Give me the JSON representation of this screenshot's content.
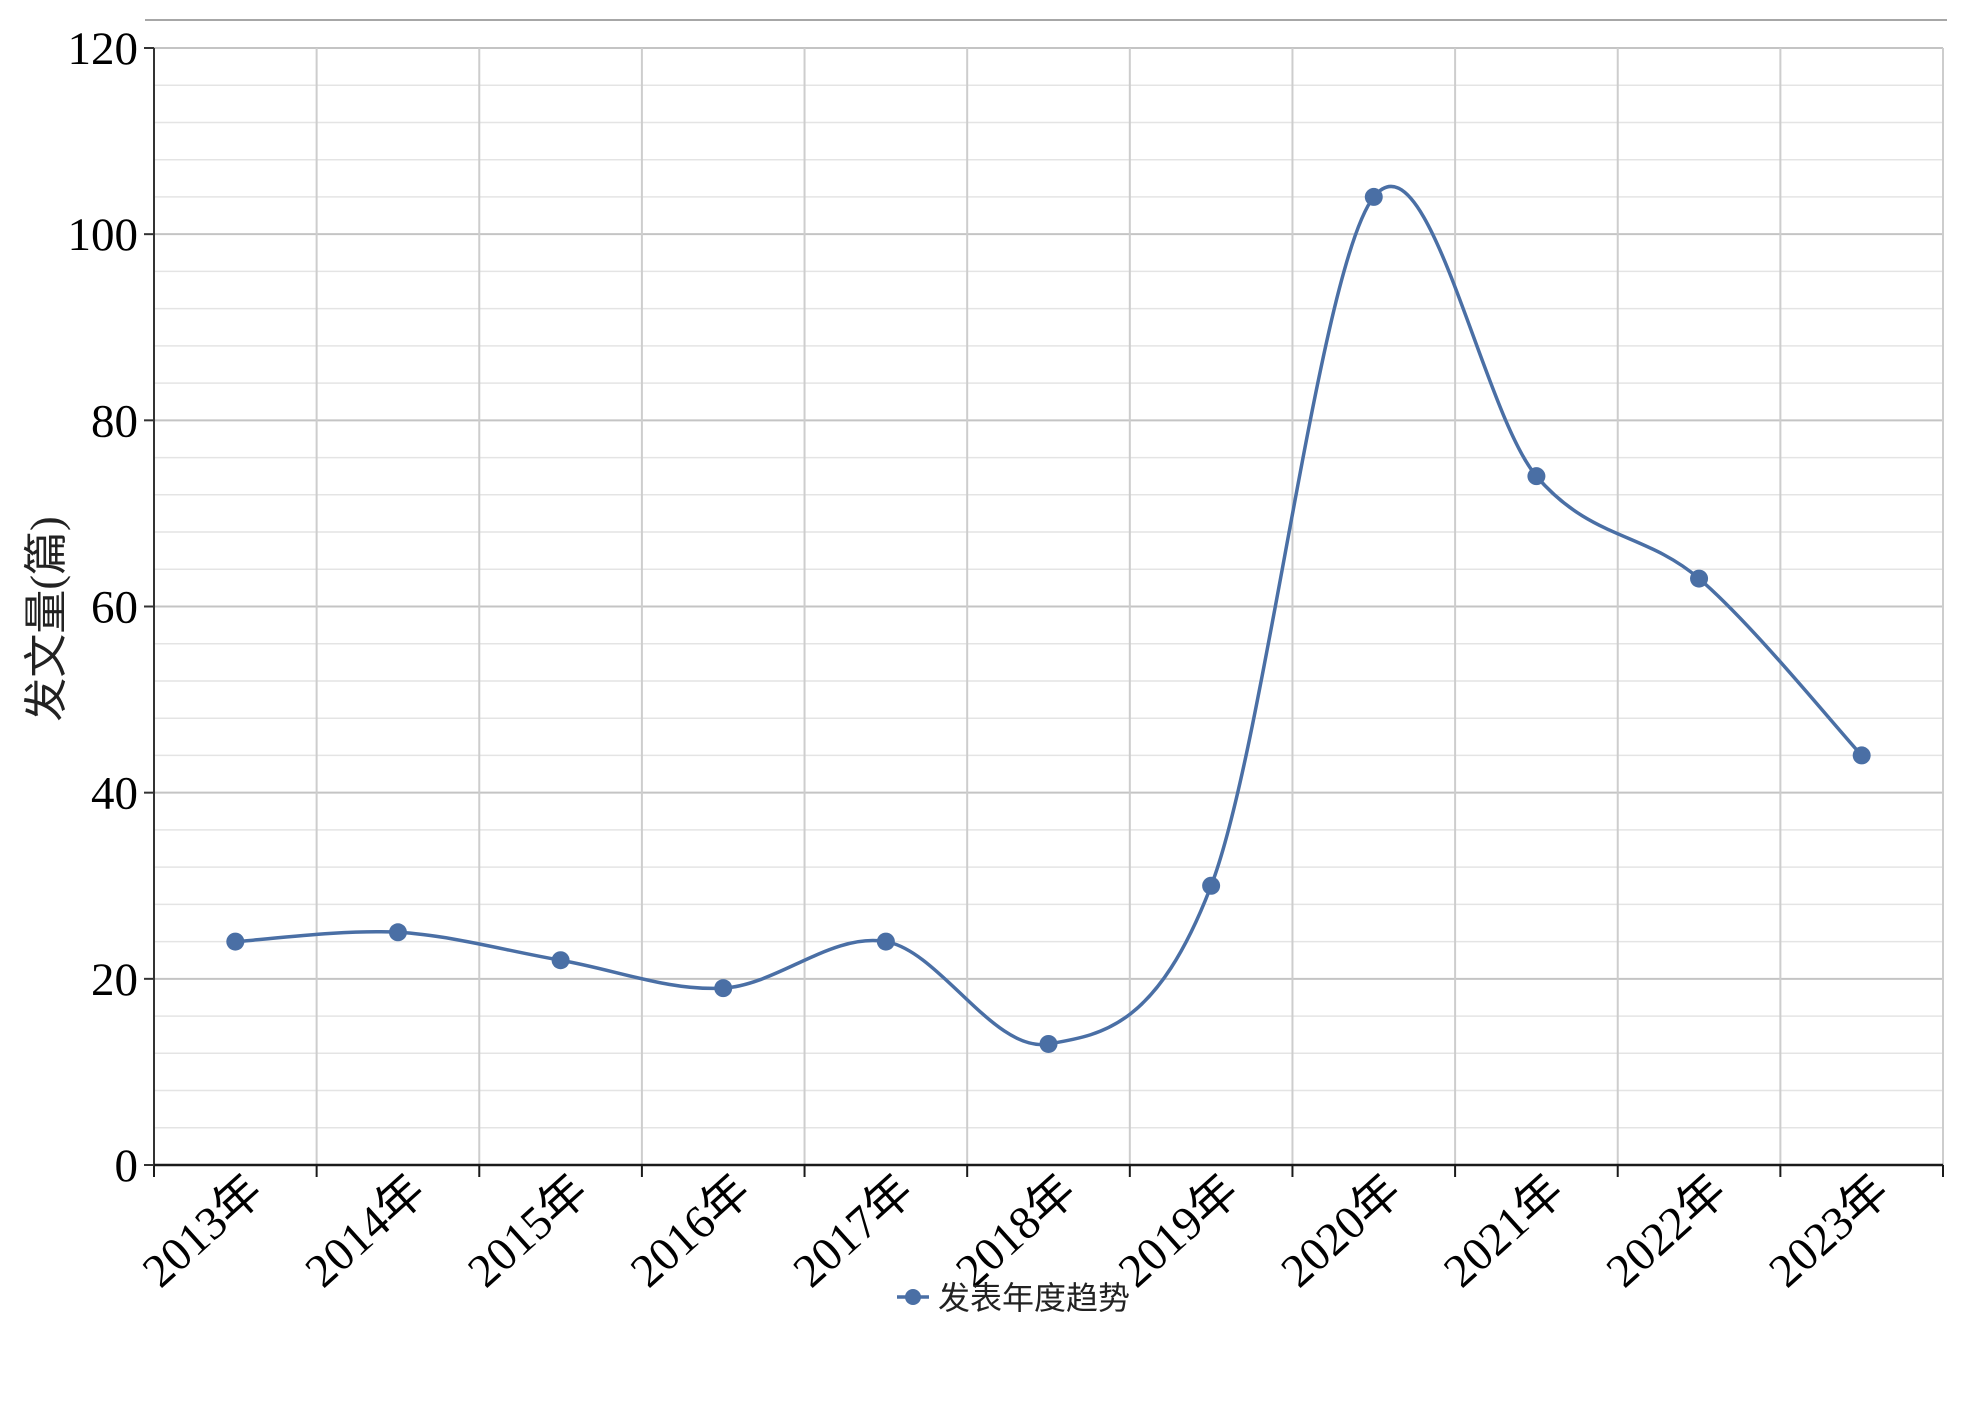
{
  "chart_data": {
    "type": "line",
    "title": "",
    "xlabel": "",
    "ylabel": "发文量(篇)",
    "categories": [
      "2013年",
      "2014年",
      "2015年",
      "2016年",
      "2017年",
      "2018年",
      "2019年",
      "2020年",
      "2021年",
      "2022年",
      "2023年"
    ],
    "series": [
      {
        "name": "发表年度趋势",
        "values": [
          24,
          25,
          22,
          19,
          24,
          13,
          30,
          104,
          74,
          63,
          44
        ]
      }
    ],
    "ylim": [
      0,
      120
    ],
    "yticks": [
      0,
      20,
      40,
      60,
      80,
      100,
      120
    ],
    "minor_grid_step": 4,
    "grid": true,
    "smooth": true,
    "markers": true,
    "legend_position": "bottom-center",
    "color": "#4a6fa5"
  }
}
